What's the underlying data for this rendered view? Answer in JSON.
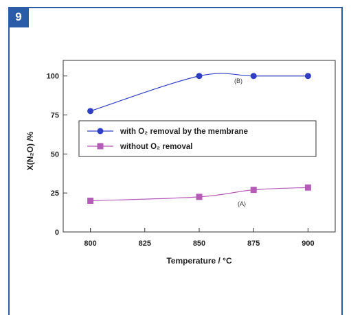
{
  "figure": {
    "number": "9"
  },
  "chart_data": {
    "type": "line",
    "xlabel": "Temperature / °C",
    "ylabel": "X(N₂O) /%",
    "xlim": [
      787.5,
      912.5
    ],
    "ylim": [
      0,
      110
    ],
    "x_ticks": [
      "800",
      "825",
      "850",
      "875",
      "900"
    ],
    "y_ticks": [
      "0",
      "25",
      "50",
      "75",
      "100"
    ],
    "grid": false,
    "legend_position": "center",
    "series": [
      {
        "name": "with O₂ removal by the membrane",
        "tag": "(B)",
        "color": "#2f3fc4",
        "marker": "circle",
        "x": [
          800,
          850,
          875,
          900
        ],
        "y": [
          77.5,
          100,
          100,
          100
        ]
      },
      {
        "name": "without O₂ removal",
        "tag": "(A)",
        "color": "#b45cb8",
        "marker": "square",
        "x": [
          800,
          850,
          875,
          900
        ],
        "y": [
          20,
          22.5,
          27,
          28.5
        ]
      }
    ]
  }
}
